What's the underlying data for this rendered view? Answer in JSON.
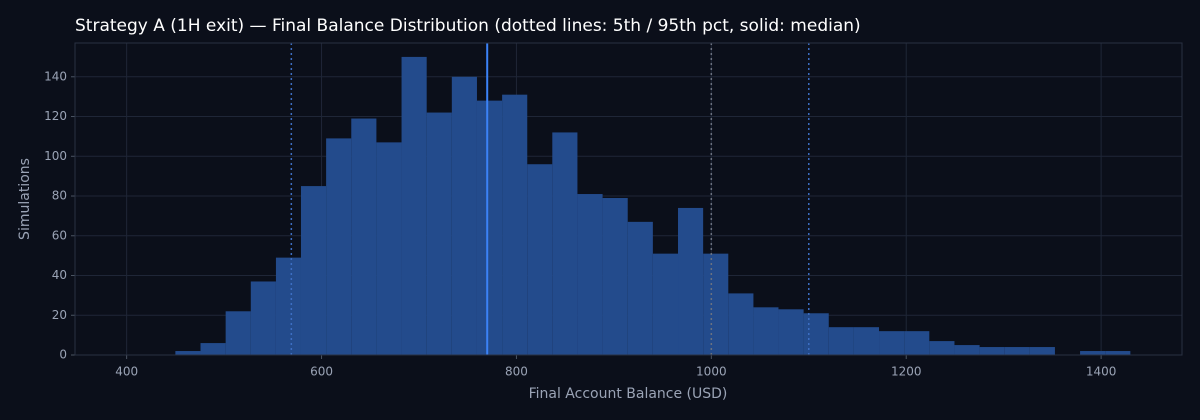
{
  "chart_data": {
    "type": "histogram",
    "title": "Strategy A (1H exit) — Final Balance Distribution (dotted lines: 5th / 95th pct, solid: median)",
    "x_label": "Final Account Balance (USD)",
    "y_label": "Simulations",
    "bins": [
      450,
      475.8,
      501.6,
      527.4,
      553.2,
      578.9,
      604.7,
      630.5,
      656.3,
      682.1,
      707.9,
      733.7,
      759.5,
      785.3,
      811.1,
      836.8,
      862.6,
      888.4,
      914.2,
      940,
      965.8,
      991.6,
      1017.4,
      1043.2,
      1068.9,
      1094.7,
      1120.5,
      1146.3,
      1172.1,
      1197.9,
      1223.7,
      1249.5,
      1275.3,
      1301.1,
      1326.8,
      1352.6,
      1378.4,
      1404.2,
      1430
    ],
    "values": [
      2,
      6,
      22,
      37,
      49,
      85,
      109,
      119,
      107,
      150,
      122,
      140,
      128,
      131,
      96,
      112,
      81,
      79,
      67,
      51,
      74,
      51,
      31,
      24,
      23,
      21,
      14,
      14,
      12,
      12,
      7,
      5,
      4,
      4,
      4,
      0,
      2,
      2
    ],
    "color": "#234b8c",
    "xlim": [
      347,
      1483
    ],
    "ylim": [
      0,
      157
    ],
    "xticks": [
      400,
      600,
      800,
      1000,
      1200,
      1400
    ],
    "yticks": [
      0,
      20,
      40,
      60,
      80,
      100,
      120,
      140
    ],
    "grid": true,
    "vlines": [
      {
        "value": 569,
        "style": "dotted",
        "color": "#3d6fc4"
      },
      {
        "value": 770,
        "style": "solid",
        "color": "#3b82f6"
      },
      {
        "value": 1100,
        "style": "dotted",
        "color": "#3d6fc4"
      },
      {
        "value": 1000,
        "style": "dotted",
        "color": "#6b7280"
      }
    ]
  }
}
